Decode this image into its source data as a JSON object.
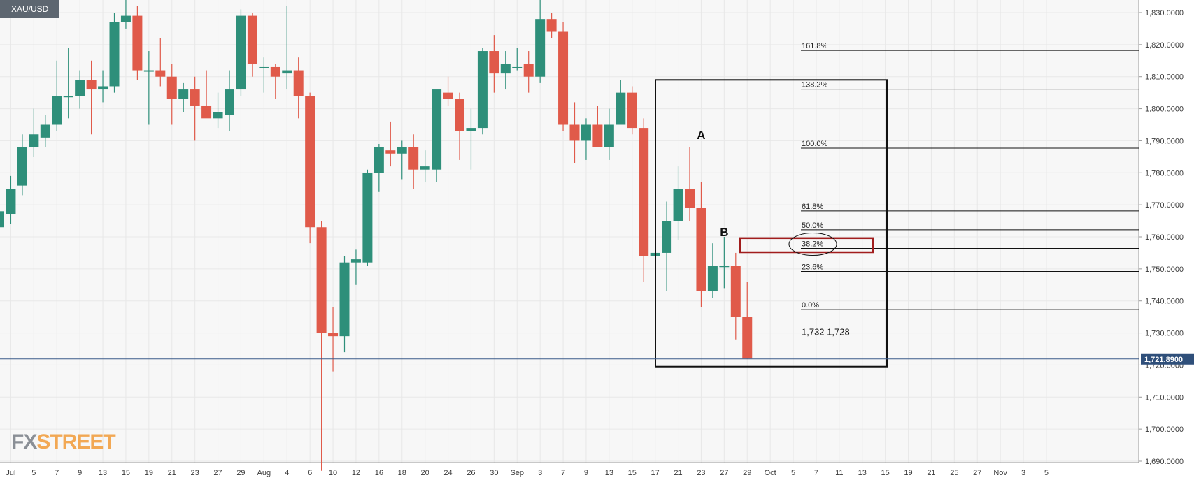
{
  "symbol": "XAU/USD",
  "logo": {
    "part1": "FX",
    "part2": "STREET",
    "color1": "#8a8f96",
    "color2": "#f2a854"
  },
  "colors": {
    "up": "#2e8f7a",
    "down": "#e05a4a",
    "grid": "#e8e8e8",
    "bg": "#f7f7f7",
    "current_line": "#3b5b8a",
    "tag_bg": "#2f4f7a",
    "zone": "#a11d1d"
  },
  "current_price_label": "1,721.8900",
  "chart_data": {
    "type": "candlestick",
    "title": "",
    "ylim": [
      1687,
      1837
    ],
    "y_ticks": [
      1690,
      1700,
      1710,
      1720,
      1730,
      1740,
      1750,
      1760,
      1770,
      1780,
      1790,
      1800,
      1810,
      1820,
      1830
    ],
    "y_tick_labels": [
      "1,690.0000",
      "1,700.0000",
      "1,710.0000",
      "1,720.0000",
      "1,730.0000",
      "1,740.0000",
      "1,750.0000",
      "1,760.0000",
      "1,770.0000",
      "1,780.0000",
      "1,790.0000",
      "1,800.0000",
      "1,810.0000",
      "1,820.0000",
      "1,830.0000"
    ],
    "x_ticks": [
      {
        "i": 1,
        "label": "Jul"
      },
      {
        "i": 3,
        "label": "5"
      },
      {
        "i": 5,
        "label": "7"
      },
      {
        "i": 7,
        "label": "9"
      },
      {
        "i": 9,
        "label": "13"
      },
      {
        "i": 11,
        "label": "15"
      },
      {
        "i": 13,
        "label": "19"
      },
      {
        "i": 15,
        "label": "21"
      },
      {
        "i": 17,
        "label": "23"
      },
      {
        "i": 19,
        "label": "27"
      },
      {
        "i": 21,
        "label": "29"
      },
      {
        "i": 23,
        "label": "Aug"
      },
      {
        "i": 25,
        "label": "4"
      },
      {
        "i": 27,
        "label": "6"
      },
      {
        "i": 29,
        "label": "10"
      },
      {
        "i": 31,
        "label": "12"
      },
      {
        "i": 33,
        "label": "16"
      },
      {
        "i": 35,
        "label": "18"
      },
      {
        "i": 37,
        "label": "20"
      },
      {
        "i": 39,
        "label": "24"
      },
      {
        "i": 41,
        "label": "26"
      },
      {
        "i": 43,
        "label": "30"
      },
      {
        "i": 45,
        "label": "Sep"
      },
      {
        "i": 47,
        "label": "3"
      },
      {
        "i": 49,
        "label": "7"
      },
      {
        "i": 51,
        "label": "9"
      },
      {
        "i": 53,
        "label": "13"
      },
      {
        "i": 55,
        "label": "15"
      },
      {
        "i": 57,
        "label": "17"
      },
      {
        "i": 59,
        "label": "21"
      },
      {
        "i": 61,
        "label": "23"
      },
      {
        "i": 63,
        "label": "27"
      },
      {
        "i": 65,
        "label": "29"
      },
      {
        "i": 67,
        "label": "Oct"
      },
      {
        "i": 69,
        "label": "5"
      },
      {
        "i": 71,
        "label": "7"
      },
      {
        "i": 73,
        "label": "11"
      },
      {
        "i": 75,
        "label": "13"
      },
      {
        "i": 77,
        "label": "15"
      },
      {
        "i": 79,
        "label": "19"
      },
      {
        "i": 81,
        "label": "21"
      },
      {
        "i": 83,
        "label": "25"
      },
      {
        "i": 85,
        "label": "27"
      },
      {
        "i": 87,
        "label": "Nov"
      },
      {
        "i": 89,
        "label": "3"
      },
      {
        "i": 91,
        "label": "5"
      }
    ],
    "candles": [
      {
        "o": 1763,
        "h": 1770,
        "l": 1753,
        "c": 1768
      },
      {
        "o": 1767,
        "h": 1779,
        "l": 1764,
        "c": 1775
      },
      {
        "o": 1776,
        "h": 1792,
        "l": 1773,
        "c": 1788
      },
      {
        "o": 1788,
        "h": 1800,
        "l": 1785,
        "c": 1792
      },
      {
        "o": 1791,
        "h": 1798,
        "l": 1788,
        "c": 1795
      },
      {
        "o": 1795,
        "h": 1815,
        "l": 1793,
        "c": 1804
      },
      {
        "o": 1804,
        "h": 1819,
        "l": 1797,
        "c": 1804
      },
      {
        "o": 1804,
        "h": 1812,
        "l": 1800,
        "c": 1809
      },
      {
        "o": 1809,
        "h": 1815,
        "l": 1792,
        "c": 1806
      },
      {
        "o": 1806,
        "h": 1812,
        "l": 1802,
        "c": 1807
      },
      {
        "o": 1807,
        "h": 1830,
        "l": 1805,
        "c": 1827
      },
      {
        "o": 1827,
        "h": 1834,
        "l": 1825,
        "c": 1829
      },
      {
        "o": 1829,
        "h": 1832,
        "l": 1809,
        "c": 1812
      },
      {
        "o": 1812,
        "h": 1818,
        "l": 1795,
        "c": 1812
      },
      {
        "o": 1812,
        "h": 1822,
        "l": 1807,
        "c": 1810
      },
      {
        "o": 1810,
        "h": 1814,
        "l": 1795,
        "c": 1803
      },
      {
        "o": 1803,
        "h": 1808,
        "l": 1799,
        "c": 1806
      },
      {
        "o": 1806,
        "h": 1810,
        "l": 1790,
        "c": 1801
      },
      {
        "o": 1801,
        "h": 1812,
        "l": 1798,
        "c": 1797
      },
      {
        "o": 1797,
        "h": 1805,
        "l": 1794,
        "c": 1799
      },
      {
        "o": 1798,
        "h": 1812,
        "l": 1793,
        "c": 1806
      },
      {
        "o": 1806,
        "h": 1831,
        "l": 1804,
        "c": 1829
      },
      {
        "o": 1829,
        "h": 1830,
        "l": 1810,
        "c": 1814
      },
      {
        "o": 1813,
        "h": 1816,
        "l": 1805,
        "c": 1813
      },
      {
        "o": 1813,
        "h": 1814,
        "l": 1803,
        "c": 1810
      },
      {
        "o": 1811,
        "h": 1832,
        "l": 1806,
        "c": 1812
      },
      {
        "o": 1812,
        "h": 1816,
        "l": 1797,
        "c": 1804
      },
      {
        "o": 1804,
        "h": 1805,
        "l": 1758,
        "c": 1763
      },
      {
        "o": 1763,
        "h": 1765,
        "l": 1687,
        "c": 1730
      },
      {
        "o": 1730,
        "h": 1738,
        "l": 1718,
        "c": 1729
      },
      {
        "o": 1729,
        "h": 1754,
        "l": 1724,
        "c": 1752
      },
      {
        "o": 1752,
        "h": 1756,
        "l": 1745,
        "c": 1753
      },
      {
        "o": 1752,
        "h": 1781,
        "l": 1751,
        "c": 1780
      },
      {
        "o": 1780,
        "h": 1789,
        "l": 1774,
        "c": 1788
      },
      {
        "o": 1787,
        "h": 1796,
        "l": 1782,
        "c": 1786
      },
      {
        "o": 1786,
        "h": 1790,
        "l": 1778,
        "c": 1788
      },
      {
        "o": 1788,
        "h": 1792,
        "l": 1775,
        "c": 1781
      },
      {
        "o": 1781,
        "h": 1787,
        "l": 1777,
        "c": 1782
      },
      {
        "o": 1781,
        "h": 1805,
        "l": 1777,
        "c": 1806
      },
      {
        "o": 1805,
        "h": 1810,
        "l": 1801,
        "c": 1803
      },
      {
        "o": 1803,
        "h": 1805,
        "l": 1784,
        "c": 1793
      },
      {
        "o": 1793,
        "h": 1800,
        "l": 1781,
        "c": 1794
      },
      {
        "o": 1794,
        "h": 1819,
        "l": 1792,
        "c": 1818
      },
      {
        "o": 1818,
        "h": 1823,
        "l": 1805,
        "c": 1811
      },
      {
        "o": 1811,
        "h": 1818,
        "l": 1806,
        "c": 1814
      },
      {
        "o": 1813,
        "h": 1819,
        "l": 1812,
        "c": 1813
      },
      {
        "o": 1814,
        "h": 1818,
        "l": 1805,
        "c": 1810
      },
      {
        "o": 1810,
        "h": 1834,
        "l": 1808,
        "c": 1828
      },
      {
        "o": 1828,
        "h": 1830,
        "l": 1822,
        "c": 1824
      },
      {
        "o": 1824,
        "h": 1827,
        "l": 1793,
        "c": 1795
      },
      {
        "o": 1795,
        "h": 1802,
        "l": 1783,
        "c": 1790
      },
      {
        "o": 1790,
        "h": 1797,
        "l": 1784,
        "c": 1795
      },
      {
        "o": 1795,
        "h": 1801,
        "l": 1789,
        "c": 1788
      },
      {
        "o": 1788,
        "h": 1800,
        "l": 1784,
        "c": 1795
      },
      {
        "o": 1795,
        "h": 1809,
        "l": 1795,
        "c": 1805
      },
      {
        "o": 1805,
        "h": 1807,
        "l": 1792,
        "c": 1794
      },
      {
        "o": 1794,
        "h": 1797,
        "l": 1746,
        "c": 1754
      },
      {
        "o": 1754,
        "h": 1768,
        "l": 1749,
        "c": 1755
      },
      {
        "o": 1755,
        "h": 1771,
        "l": 1743,
        "c": 1765
      },
      {
        "o": 1765,
        "h": 1782,
        "l": 1759,
        "c": 1775
      },
      {
        "o": 1775,
        "h": 1788,
        "l": 1765,
        "c": 1769
      },
      {
        "o": 1769,
        "h": 1777,
        "l": 1738,
        "c": 1743
      },
      {
        "o": 1743,
        "h": 1758,
        "l": 1741,
        "c": 1751
      },
      {
        "o": 1751,
        "h": 1760,
        "l": 1744,
        "c": 1751
      },
      {
        "o": 1751,
        "h": 1755,
        "l": 1728,
        "c": 1735
      },
      {
        "o": 1735,
        "h": 1746,
        "l": 1722,
        "c": 1722
      }
    ],
    "fib_levels": [
      {
        "label": "161.8%",
        "price": 1818.2
      },
      {
        "label": "138.2%",
        "price": 1806.1
      },
      {
        "label": "100.0%",
        "price": 1787.7
      },
      {
        "label": "61.8%",
        "price": 1768.1
      },
      {
        "label": "50.0%",
        "price": 1762.2
      },
      {
        "label": "38.2%",
        "price": 1756.4
      },
      {
        "label": "23.6%",
        "price": 1749.2
      },
      {
        "label": "0.0%",
        "price": 1737.3
      }
    ],
    "annotations": [
      {
        "label": "A",
        "i": 61,
        "price": 1790.5
      },
      {
        "label": "B",
        "i": 63,
        "price": 1760.2
      }
    ],
    "note": "1,732  1,728",
    "current_price": 1721.89
  }
}
